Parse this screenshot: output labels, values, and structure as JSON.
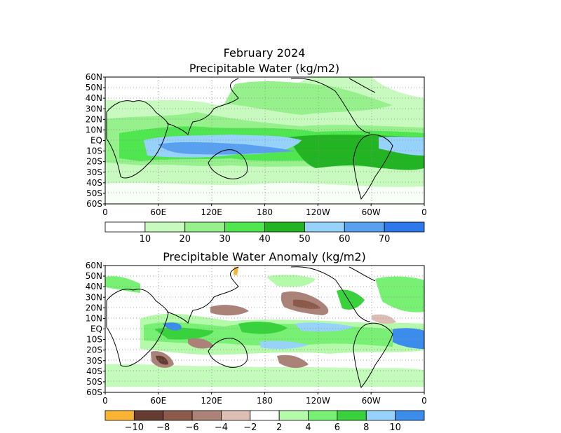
{
  "titles": {
    "line1": "February 2024",
    "line2": "Precipitable Water (kg/m2)",
    "line3": "Precipitable Water Anomaly (kg/m2)"
  },
  "axes": {
    "lat_labels": [
      "60N",
      "50N",
      "40N",
      "30N",
      "20N",
      "10N",
      "EQ",
      "10S",
      "20S",
      "30S",
      "40S",
      "50S",
      "60S"
    ],
    "lon_labels": [
      "0",
      "60E",
      "120E",
      "180",
      "120W",
      "60W",
      "0"
    ]
  },
  "colorbar_top": {
    "labels": [
      "10",
      "20",
      "30",
      "40",
      "50",
      "60",
      "70"
    ],
    "colors": [
      "#ffffff",
      "#c8fac0",
      "#96f08c",
      "#50e650",
      "#23b423",
      "#96d2fa",
      "#5aa0f0",
      "#2d78eb"
    ]
  },
  "colorbar_bottom": {
    "labels": [
      "−10",
      "−8",
      "−6",
      "−4",
      "−2",
      "2",
      "4",
      "6",
      "8",
      "10"
    ],
    "colors": [
      "#fab432",
      "#643c32",
      "#8c5a4b",
      "#aa8278",
      "#dcbeb4",
      "#ffffff",
      "#b4faaa",
      "#78f073",
      "#37d23c",
      "#96d2fa",
      "#3c8ceb"
    ]
  },
  "colors": {
    "land_outline": "#000000",
    "grid": "#8c8c8c"
  }
}
